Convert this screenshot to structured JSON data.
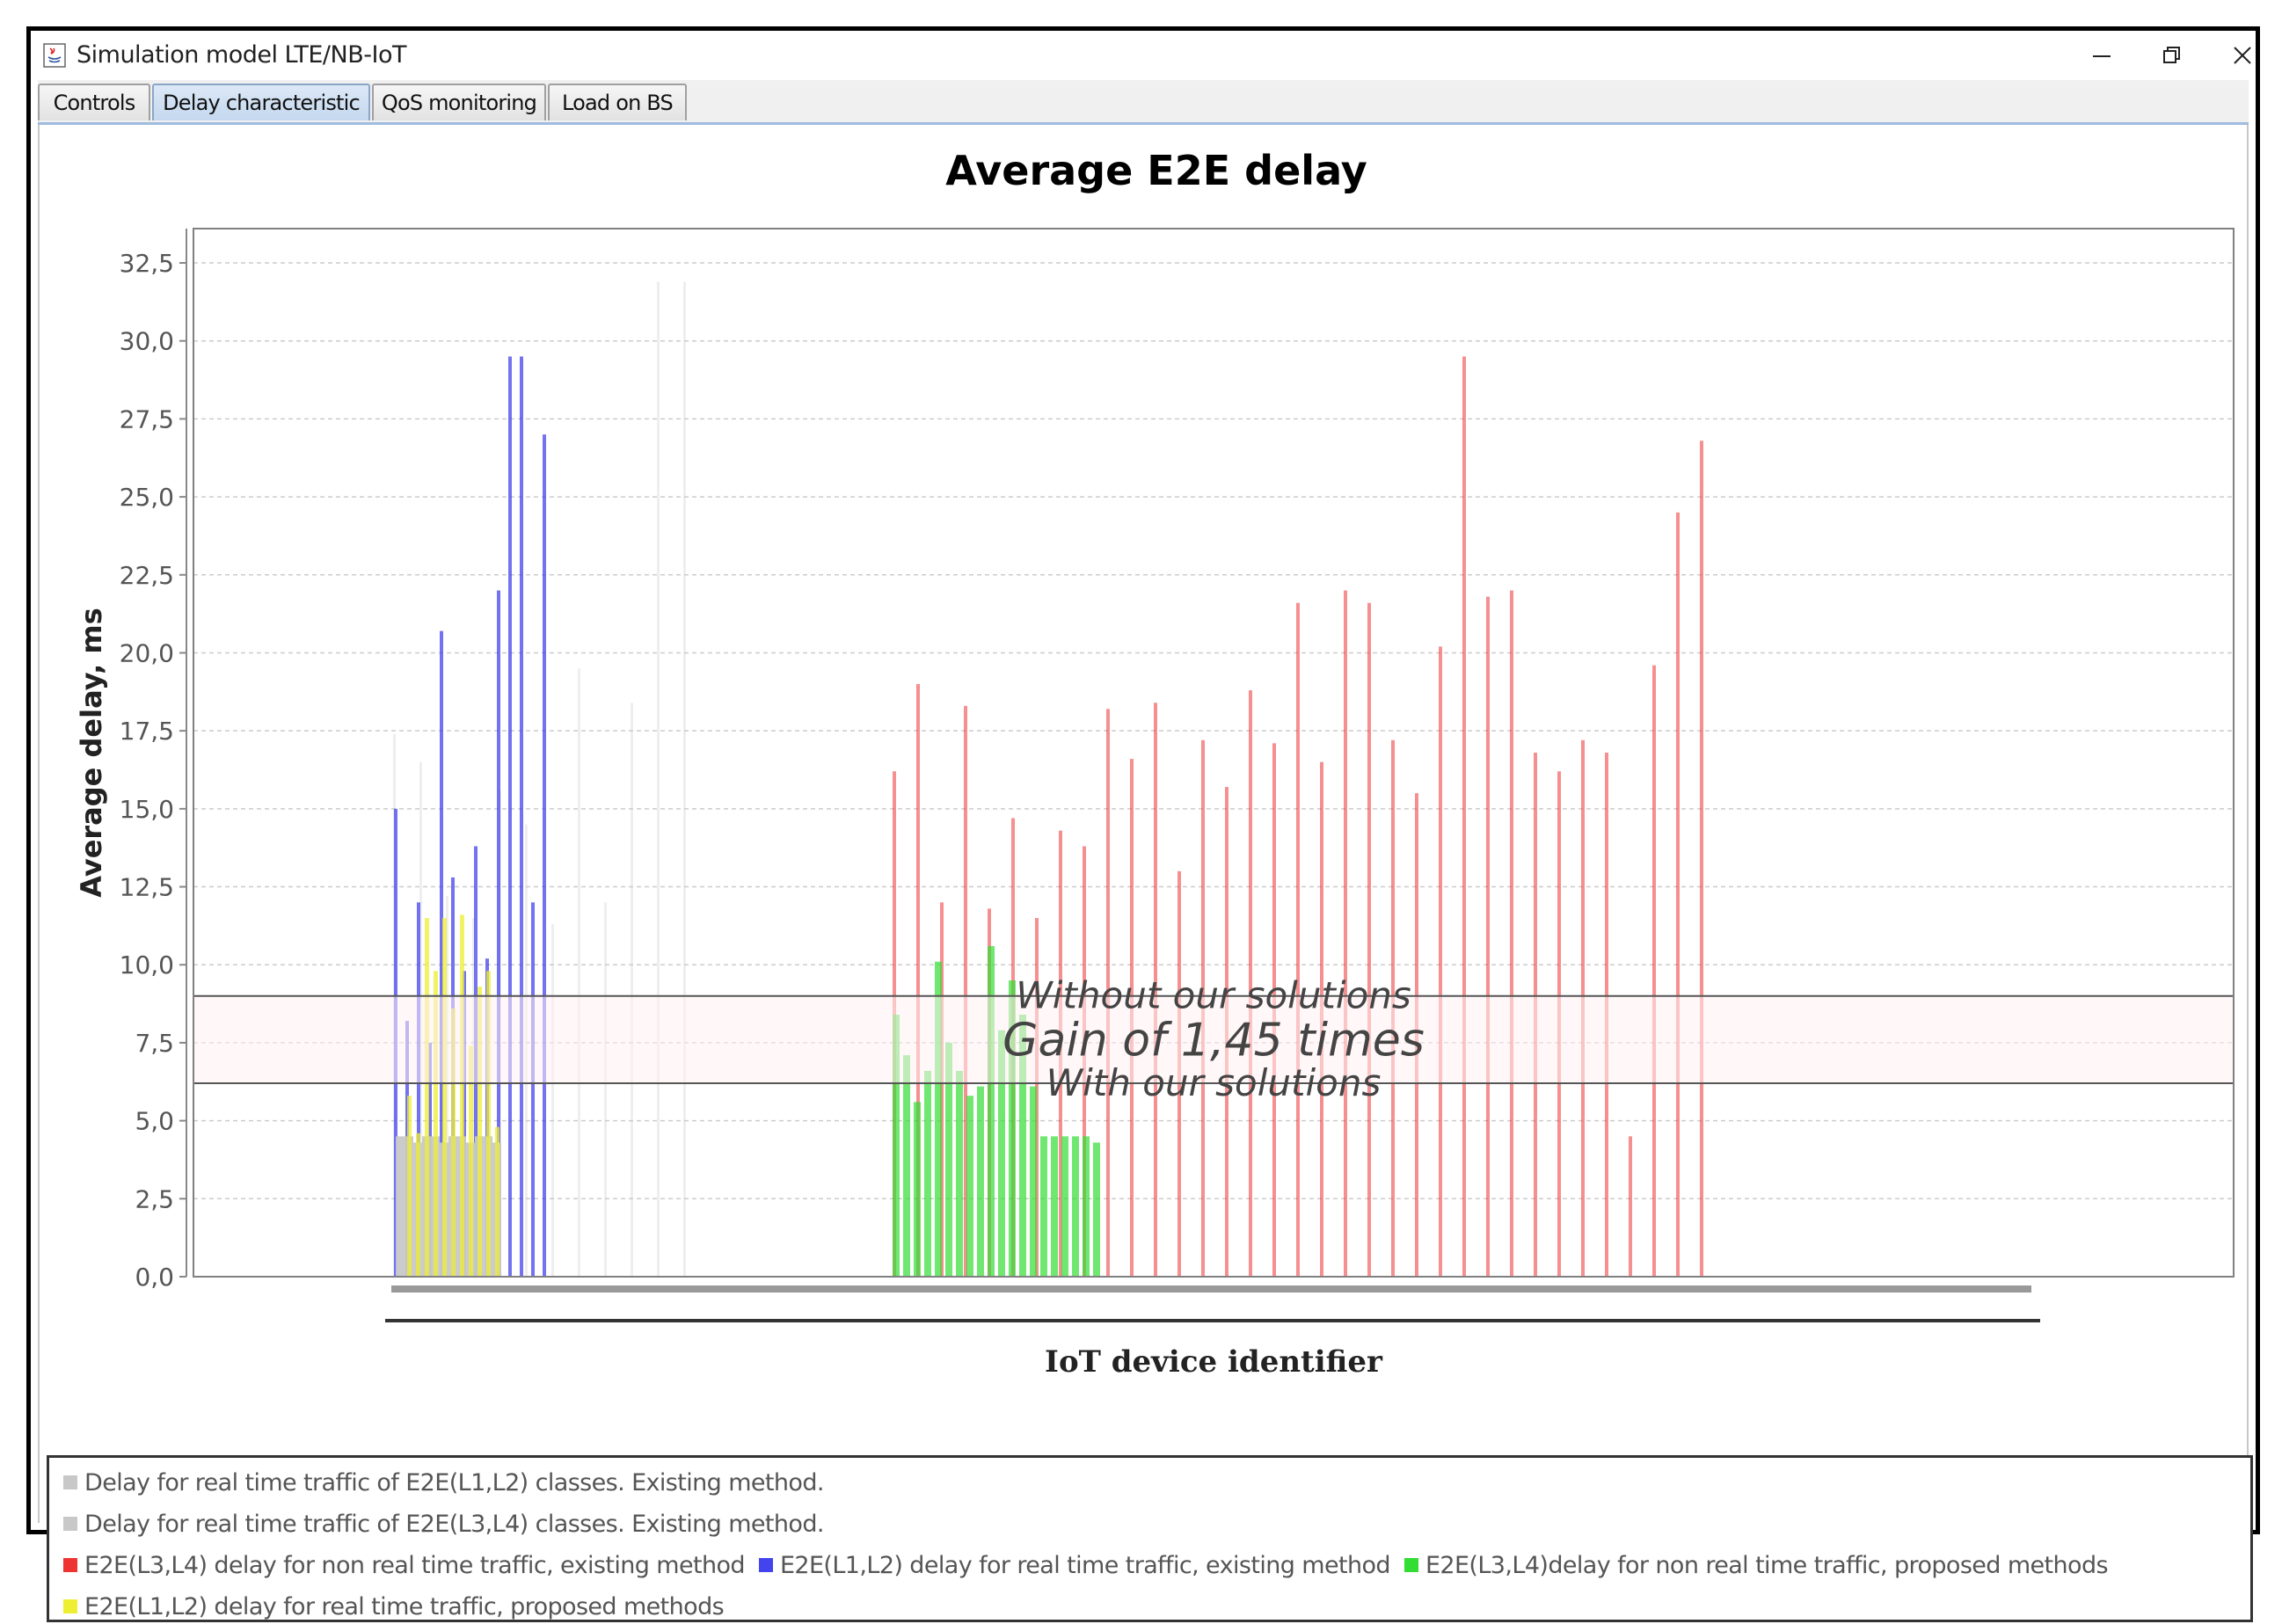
{
  "window": {
    "title": "Simulation model LTE/NB-IoT",
    "minimize_icon": "minimize-icon",
    "restore_icon": "restore-icon",
    "close_icon": "close-icon"
  },
  "tabs": [
    {
      "label": "Controls",
      "active": false
    },
    {
      "label": "Delay characteristic",
      "active": true
    },
    {
      "label": "QoS monitoring",
      "active": false
    },
    {
      "label": "Load on BS",
      "active": false
    }
  ],
  "chart_data": {
    "type": "bar",
    "title": "Average E2E delay",
    "xlabel": "IoT device identifier",
    "ylabel": "Average delay, ms",
    "ylim": [
      0,
      33.6
    ],
    "yticks": [
      "0,0",
      "2,5",
      "5,0",
      "7,5",
      "10,0",
      "12,5",
      "15,0",
      "17,5",
      "20,0",
      "22,5",
      "25,0",
      "27,5",
      "30,0",
      "32,5"
    ],
    "grid": true,
    "reference_lines": [
      {
        "value": 9.0,
        "label": "Without our solutions"
      },
      {
        "value": 6.2,
        "label": "With our solutions"
      }
    ],
    "annotation": "Gain of 1,45 times",
    "series": [
      {
        "name": "Delay for real time traffic of E2E(L1,L2) classes. Existing method.",
        "color": "#c8c8c8",
        "values": [
          4.5,
          4.5,
          4.3,
          4.5,
          4.5,
          4.3,
          4.5,
          4.5,
          4.3,
          4.5,
          4.5,
          4.3
        ]
      },
      {
        "name": "Delay for real time traffic of E2E(L3,L4) classes. Existing method.",
        "color": "#c8c8c8",
        "values": [
          17.4,
          16.5,
          12.2,
          11.5,
          15.6,
          14.5,
          11.3,
          19.5,
          12.0,
          18.4,
          31.9,
          31.9
        ]
      },
      {
        "name": "E2E(L3,L4) delay for non real time traffic, existing method",
        "color": "#ee3333",
        "values": [
          16.2,
          19.0,
          12.0,
          18.3,
          11.8,
          14.7,
          11.5,
          14.3,
          13.8,
          18.2,
          16.6,
          18.4,
          13.0,
          17.2,
          15.7,
          18.8,
          17.1,
          21.6,
          16.5,
          22.0,
          21.6,
          17.2,
          15.5,
          20.2,
          29.5,
          21.8,
          22.0,
          16.8,
          16.2,
          17.2,
          16.8,
          4.5,
          19.6,
          24.5,
          26.8
        ]
      },
      {
        "name": "E2E(L1,L2) delay for real time traffic, existing method",
        "color": "#4444ee",
        "values": [
          15.0,
          8.2,
          12.0,
          7.5,
          20.7,
          12.8,
          9.8,
          13.8,
          10.2,
          22.0,
          29.5,
          29.5,
          12.0,
          27.0
        ]
      },
      {
        "name": "E2E(L3,L4)delay for non real time traffic, proposed methods",
        "color": "#33dd33",
        "values": [
          8.4,
          7.1,
          5.6,
          6.6,
          10.1,
          7.5,
          6.6,
          5.8,
          6.1,
          10.6,
          7.9,
          9.5,
          8.4,
          6.1,
          4.5,
          4.5,
          4.5,
          4.5,
          4.5,
          4.3
        ]
      },
      {
        "name": "E2E(L1,L2) delay for real time traffic, proposed methods",
        "color": "#eeee33",
        "values": [
          5.8,
          4.6,
          11.5,
          9.8,
          11.5,
          8.6,
          11.6,
          7.4,
          9.3,
          9.8,
          4.8
        ]
      }
    ]
  }
}
